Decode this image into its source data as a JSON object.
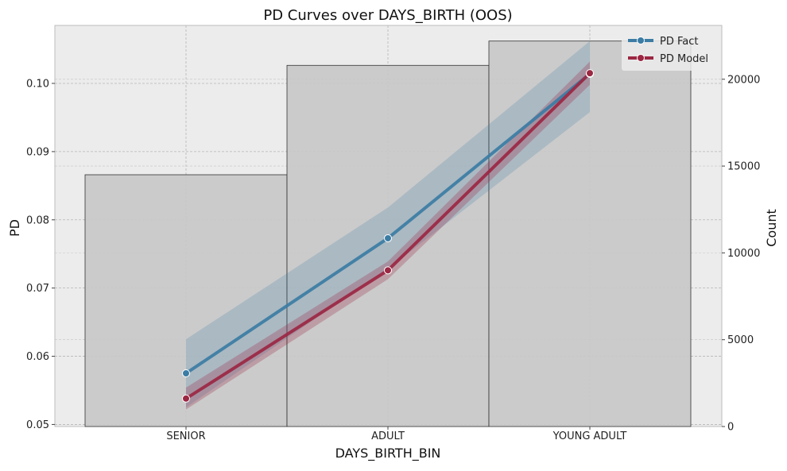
{
  "chart_data": {
    "type": "line",
    "title": "PD Curves over DAYS_BIRTH (OOS)",
    "xlabel": "DAYS_BIRTH_BIN",
    "ylabel": "PD",
    "y2label": "Count",
    "categories": [
      "SENIOR",
      "ADULT",
      "YOUNG ADULT"
    ],
    "ylim": [
      0.0497,
      0.1085
    ],
    "y2lim": [
      0,
      23100
    ],
    "yticks": [
      "0.05",
      "0.06",
      "0.07",
      "0.08",
      "0.09",
      "0.10"
    ],
    "y2ticks": [
      "0",
      "5000",
      "10000",
      "15000",
      "20000"
    ],
    "grid": true,
    "legend_position": "top-right",
    "series": [
      {
        "name": "PD Fact",
        "color": "#3b7ca4",
        "values": [
          0.0575,
          0.0773,
          0.1014
        ],
        "ci_lower": [
          0.0525,
          0.0728,
          0.0958
        ],
        "ci_upper": [
          0.0625,
          0.0818,
          0.1062
        ]
      },
      {
        "name": "PD Model",
        "color": "#9b2743",
        "values": [
          0.0538,
          0.0726,
          0.1015
        ],
        "ci_lower": [
          0.0522,
          0.0713,
          0.0998
        ],
        "ci_upper": [
          0.0554,
          0.0739,
          0.1032
        ]
      }
    ],
    "bars": {
      "name": "Count",
      "color": "#c8c8c8",
      "values": [
        14500,
        20800,
        22200
      ]
    }
  }
}
